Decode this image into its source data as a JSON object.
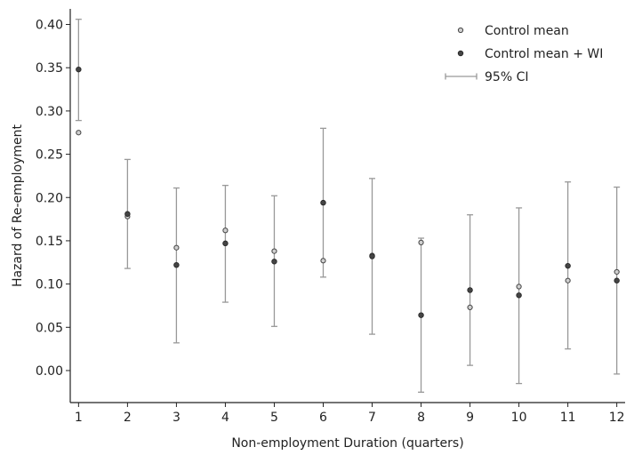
{
  "chart_data": {
    "type": "scatter",
    "xlabel": "Non-employment Duration (quarters)",
    "ylabel": "Hazard of Re-employment",
    "x": [
      1,
      2,
      3,
      4,
      5,
      6,
      7,
      8,
      9,
      10,
      11,
      12
    ],
    "xlim": [
      0.83,
      12.17
    ],
    "ylim": [
      -0.037,
      0.418
    ],
    "yticks": [
      0.0,
      0.05,
      0.1,
      0.15,
      0.2,
      0.25,
      0.3,
      0.35,
      0.4
    ],
    "ytick_labels": [
      "0.00",
      "0.05",
      "0.10",
      "0.15",
      "0.20",
      "0.25",
      "0.30",
      "0.35",
      "0.40"
    ],
    "xtick_labels": [
      "1",
      "2",
      "3",
      "4",
      "5",
      "6",
      "7",
      "8",
      "9",
      "10",
      "11",
      "12"
    ],
    "grid": false,
    "legend_position": "top-right",
    "series": [
      {
        "name": "Control mean",
        "marker": "open-circle",
        "values": [
          0.275,
          0.178,
          0.142,
          0.162,
          0.138,
          0.127,
          0.133,
          0.148,
          0.073,
          0.097,
          0.104,
          0.114
        ]
      },
      {
        "name": "Control mean + WI",
        "marker": "filled-circle",
        "values": [
          0.348,
          0.181,
          0.122,
          0.147,
          0.126,
          0.194,
          0.132,
          0.064,
          0.093,
          0.087,
          0.121,
          0.104
        ]
      }
    ],
    "ci": {
      "name": "95% CI",
      "lower": [
        0.289,
        0.118,
        0.032,
        0.079,
        0.051,
        0.108,
        0.042,
        -0.025,
        0.006,
        -0.015,
        0.025,
        -0.004
      ],
      "upper": [
        0.406,
        0.244,
        0.211,
        0.214,
        0.202,
        0.28,
        0.222,
        0.153,
        0.18,
        0.188,
        0.218,
        0.212
      ]
    },
    "colors": {
      "ci": "#999999",
      "open_fill": "#d0d0d0",
      "filled": "#444444",
      "axis": "#222222"
    }
  }
}
